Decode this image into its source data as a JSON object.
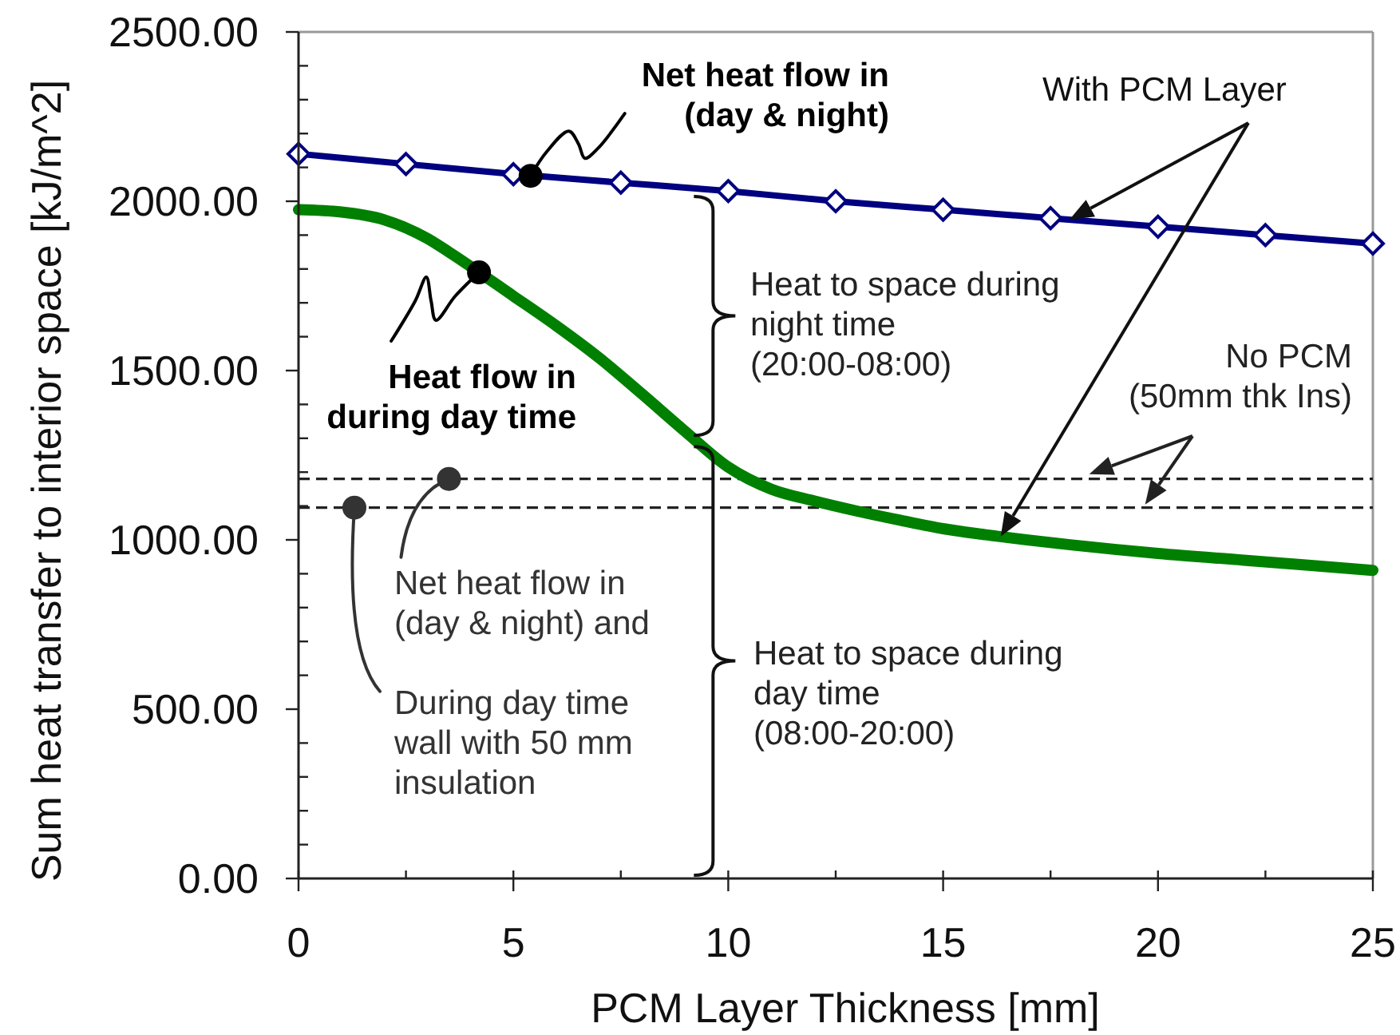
{
  "chart_data": {
    "type": "line",
    "xlabel": "PCM Layer Thickness [mm]",
    "ylabel": "Sum heat transfer to interior space [kJ/m^2]",
    "xlim": [
      0,
      25
    ],
    "xticks": [
      0,
      {
        "value": 2.5,
        "label": null
      },
      5,
      {
        "value": 7.5,
        "label": null
      },
      10,
      {
        "value": 12.5,
        "label": null
      },
      15,
      {
        "value": 17.5,
        "label": null
      },
      20,
      {
        "value": 22.5,
        "label": null
      },
      25
    ],
    "ylim": [
      0,
      2500
    ],
    "yticks": [
      {
        "value": 0,
        "label": "0.00"
      },
      {
        "value": 100,
        "label": null
      },
      {
        "value": 200,
        "label": null
      },
      {
        "value": 300,
        "label": null
      },
      {
        "value": 400,
        "label": null
      },
      {
        "value": 500,
        "label": "500.00"
      },
      {
        "value": 600,
        "label": null
      },
      {
        "value": 700,
        "label": null
      },
      {
        "value": 800,
        "label": null
      },
      {
        "value": 900,
        "label": null
      },
      {
        "value": 1000,
        "label": "1000.00"
      },
      {
        "value": 1100,
        "label": null
      },
      {
        "value": 1200,
        "label": null
      },
      {
        "value": 1300,
        "label": null
      },
      {
        "value": 1400,
        "label": null
      },
      {
        "value": 1500,
        "label": "1500.00"
      },
      {
        "value": 1600,
        "label": null
      },
      {
        "value": 1700,
        "label": null
      },
      {
        "value": 1800,
        "label": null
      },
      {
        "value": 1900,
        "label": null
      },
      {
        "value": 2000,
        "label": "2000.00"
      },
      {
        "value": 2100,
        "label": null
      },
      {
        "value": 2200,
        "label": null
      },
      {
        "value": 2300,
        "label": null
      },
      {
        "value": 2400,
        "label": null
      },
      {
        "value": 2500,
        "label": "2500.00"
      }
    ],
    "series": [
      {
        "color": "#000080",
        "marker": "diamond",
        "x": [
          0,
          2.5,
          5,
          7.5,
          10,
          12.5,
          15,
          17.5,
          20,
          22.5,
          25
        ],
        "values": [
          2140,
          2110,
          2080,
          2055,
          2030,
          2000,
          1975,
          1950,
          1925,
          1900,
          1875
        ]
      },
      {
        "color": "#008000",
        "marker": "none",
        "x": [
          0,
          1,
          2,
          3,
          3.5,
          5,
          6,
          7,
          8,
          9,
          10,
          11,
          12,
          13,
          14,
          15,
          16,
          18,
          20,
          22,
          25
        ],
        "values": [
          1975,
          1968,
          1945,
          1890,
          1850,
          1720,
          1632,
          1537,
          1430,
          1320,
          1215,
          1150,
          1115,
          1085,
          1058,
          1033,
          1015,
          985,
          960,
          940,
          910
        ]
      }
    ],
    "ref_lines": [
      {
        "axis": "y",
        "value": 1180,
        "color": "#222222",
        "line_style": "dashed"
      },
      {
        "axis": "y",
        "value": 1095,
        "color": "#222222",
        "line_style": "dashed"
      }
    ],
    "annotations": [
      {
        "text": "Net heat flow in\n(day & night)",
        "x": 5.4,
        "y": 2075
      },
      {
        "text": "Heat flow in\nduring day time",
        "x": 4.2,
        "y": 1790
      },
      {
        "text": "Net heat flow in\n(day & night) and",
        "x": 3.5,
        "y": 1180
      },
      {
        "text": "During day time\nwall with 50 mm\ninsulation",
        "x": 1.3,
        "y": 1095
      },
      "Heat to space during\nnight time\n(20:00-08:00)",
      "Heat to space during\nday time\n(08:00-20:00)",
      "With PCM Layer",
      {
        "text": "No PCM\n(50mm thk Ins)",
        "x": 18.4,
        "y": 1180
      }
    ]
  }
}
